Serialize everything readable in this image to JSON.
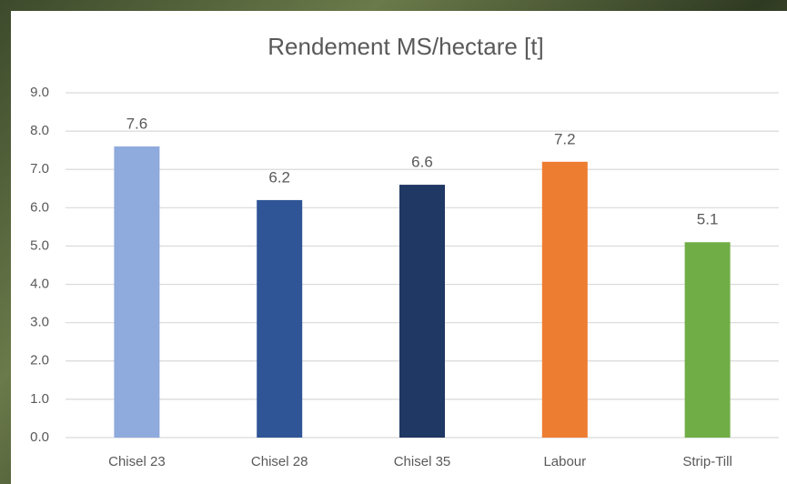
{
  "chart_data": {
    "type": "bar",
    "title": "Rendement MS/hectare [t]",
    "categories": [
      "Chisel 23",
      "Chisel 28",
      "Chisel 35",
      "Labour",
      "Strip-Till"
    ],
    "values": [
      7.6,
      6.2,
      6.6,
      7.2,
      5.1
    ],
    "colors": [
      "#8faadc",
      "#2f5597",
      "#1f3864",
      "#ed7d31",
      "#70ad47"
    ],
    "ylim": [
      0,
      9
    ],
    "yticks": [
      {
        "value": 0,
        "label": "0.0"
      },
      {
        "value": 1,
        "label": "1.0"
      },
      {
        "value": 2,
        "label": "2.0"
      },
      {
        "value": 3,
        "label": "3.0"
      },
      {
        "value": 4,
        "label": "4.0"
      },
      {
        "value": 5,
        "label": "5.0"
      },
      {
        "value": 6,
        "label": "6.0"
      },
      {
        "value": 7,
        "label": "7.0"
      },
      {
        "value": 8,
        "label": "8.0"
      },
      {
        "value": 9,
        "label": "9.0"
      }
    ],
    "grid": true
  }
}
